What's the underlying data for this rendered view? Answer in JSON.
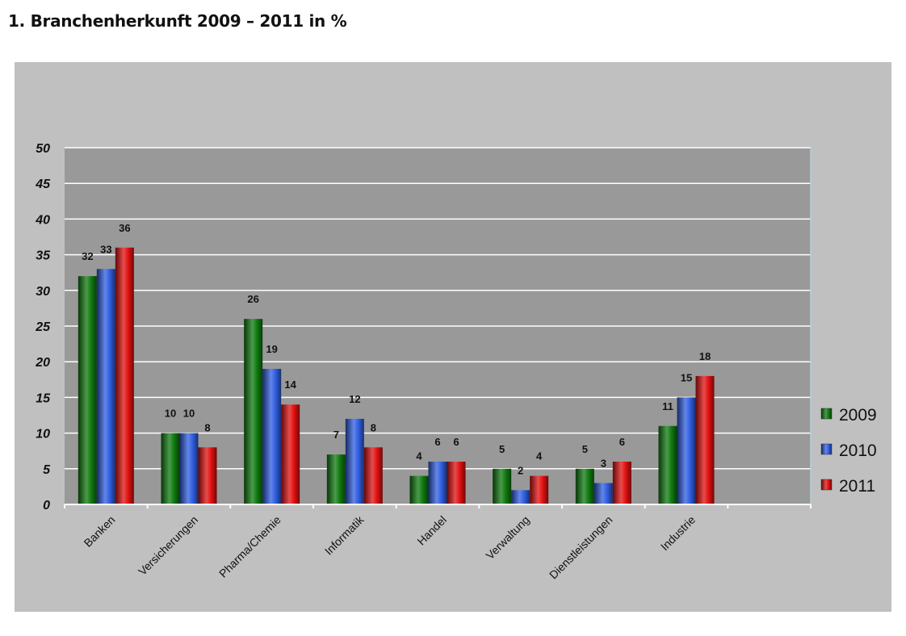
{
  "page": {
    "title": "1.  Branchenherkunft 2009 – 2011 in %"
  },
  "colors": {
    "plot_bg": "#999999",
    "frame_bg": "#c0c0c0",
    "gridline": "#ffffff"
  },
  "chart_data": {
    "type": "bar",
    "title": "",
    "xlabel": "",
    "ylabel": "",
    "ylim": [
      0,
      50
    ],
    "yticks": [
      0,
      5,
      10,
      15,
      20,
      25,
      30,
      35,
      40,
      45,
      50
    ],
    "grid": true,
    "legend_position": "right",
    "categories": [
      "Banken",
      "Versicherungen",
      "Pharma/Chemie",
      "Informatik",
      "Handel",
      "Verwaltung",
      "Dienstleistungen",
      "Industrie",
      ""
    ],
    "series": [
      {
        "name": "2009",
        "color": "#0f7a0f",
        "values": [
          32,
          10,
          26,
          7,
          4,
          5,
          5,
          11,
          null
        ]
      },
      {
        "name": "2010",
        "color": "#2f5ee0",
        "values": [
          33,
          10,
          19,
          12,
          6,
          2,
          3,
          15,
          null
        ]
      },
      {
        "name": "2011",
        "color": "#e01010",
        "values": [
          36,
          8,
          14,
          8,
          6,
          4,
          6,
          18,
          null
        ]
      }
    ]
  }
}
